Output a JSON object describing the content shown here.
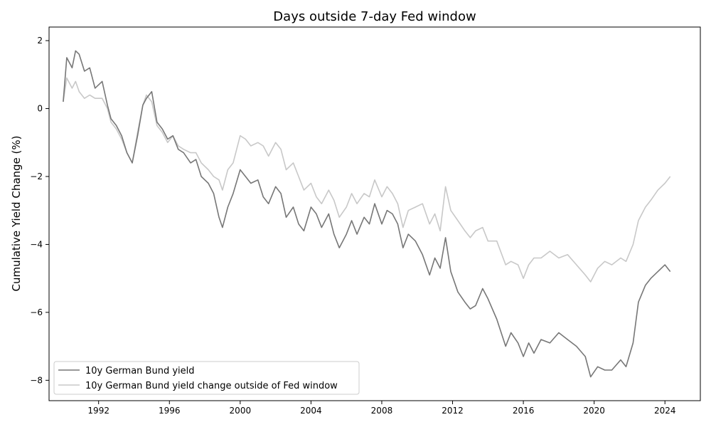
{
  "chart_data": {
    "type": "line",
    "title": "Days outside 7-day Fed window",
    "xlabel": "",
    "ylabel": "Cumulative Yield Change (%)",
    "xlim": [
      1989.2,
      2026.0
    ],
    "ylim": [
      -8.6,
      2.4
    ],
    "x_ticks": [
      1992,
      1996,
      2000,
      2004,
      2008,
      2012,
      2016,
      2020,
      2024
    ],
    "y_ticks": [
      2,
      0,
      -2,
      -4,
      -6,
      -8
    ],
    "y_tick_labels": [
      "2",
      "0",
      "−2",
      "−4",
      "−6",
      "−8"
    ],
    "grid": false,
    "legend_placement": "lower-left",
    "series": [
      {
        "name": "10y German Bund yield",
        "color": "#777777",
        "x": [
          1990.0,
          1990.2,
          1990.5,
          1990.7,
          1990.9,
          1991.2,
          1991.5,
          1991.8,
          1992.2,
          1992.5,
          1992.7,
          1993.0,
          1993.3,
          1993.6,
          1993.9,
          1994.2,
          1994.5,
          1994.7,
          1995.0,
          1995.3,
          1995.6,
          1995.9,
          1996.2,
          1996.5,
          1996.8,
          1997.2,
          1997.5,
          1997.8,
          1998.2,
          1998.5,
          1998.8,
          1999.0,
          1999.3,
          1999.6,
          2000.0,
          2000.3,
          2000.6,
          2001.0,
          2001.3,
          2001.6,
          2002.0,
          2002.3,
          2002.6,
          2003.0,
          2003.3,
          2003.6,
          2004.0,
          2004.3,
          2004.6,
          2005.0,
          2005.3,
          2005.6,
          2006.0,
          2006.3,
          2006.6,
          2007.0,
          2007.3,
          2007.6,
          2008.0,
          2008.3,
          2008.6,
          2008.9,
          2009.2,
          2009.5,
          2009.9,
          2010.3,
          2010.7,
          2011.0,
          2011.3,
          2011.6,
          2011.9,
          2012.3,
          2012.7,
          2013.0,
          2013.3,
          2013.7,
          2014.0,
          2014.5,
          2015.0,
          2015.3,
          2015.7,
          2016.0,
          2016.3,
          2016.6,
          2017.0,
          2017.5,
          2018.0,
          2018.5,
          2019.0,
          2019.5,
          2019.8,
          2020.2,
          2020.6,
          2021.0,
          2021.5,
          2021.8,
          2022.2,
          2022.5,
          2022.9,
          2023.2,
          2023.6,
          2024.0,
          2024.3
        ],
        "y": [
          0.2,
          1.5,
          1.2,
          1.7,
          1.6,
          1.1,
          1.2,
          0.6,
          0.8,
          0.1,
          -0.3,
          -0.5,
          -0.8,
          -1.3,
          -1.6,
          -0.8,
          0.1,
          0.3,
          0.5,
          -0.4,
          -0.6,
          -0.9,
          -0.8,
          -1.2,
          -1.3,
          -1.6,
          -1.5,
          -2.0,
          -2.2,
          -2.5,
          -3.2,
          -3.5,
          -2.9,
          -2.5,
          -1.8,
          -2.0,
          -2.2,
          -2.1,
          -2.6,
          -2.8,
          -2.3,
          -2.5,
          -3.2,
          -2.9,
          -3.4,
          -3.6,
          -2.9,
          -3.1,
          -3.5,
          -3.1,
          -3.7,
          -4.1,
          -3.7,
          -3.3,
          -3.7,
          -3.2,
          -3.4,
          -2.8,
          -3.4,
          -3.0,
          -3.1,
          -3.4,
          -4.1,
          -3.7,
          -3.9,
          -4.3,
          -4.9,
          -4.4,
          -4.7,
          -3.8,
          -4.8,
          -5.4,
          -5.7,
          -5.9,
          -5.8,
          -5.3,
          -5.6,
          -6.2,
          -7.0,
          -6.6,
          -6.9,
          -7.3,
          -6.9,
          -7.2,
          -6.8,
          -6.9,
          -6.6,
          -6.8,
          -7.0,
          -7.3,
          -7.9,
          -7.6,
          -7.7,
          -7.7,
          -7.4,
          -7.6,
          -6.9,
          -5.7,
          -5.2,
          -5.0,
          -4.8,
          -4.6,
          -4.8
        ]
      },
      {
        "name": "10y German Bund yield change outside of Fed window",
        "color": "#c8c8c8",
        "x": [
          1990.0,
          1990.2,
          1990.5,
          1990.7,
          1990.9,
          1991.2,
          1991.5,
          1991.8,
          1992.2,
          1992.5,
          1992.7,
          1993.0,
          1993.3,
          1993.6,
          1993.9,
          1994.2,
          1994.5,
          1994.7,
          1995.0,
          1995.3,
          1995.6,
          1995.9,
          1996.2,
          1996.5,
          1996.8,
          1997.2,
          1997.5,
          1997.8,
          1998.2,
          1998.5,
          1998.8,
          1999.0,
          1999.3,
          1999.6,
          2000.0,
          2000.3,
          2000.6,
          2001.0,
          2001.3,
          2001.6,
          2002.0,
          2002.3,
          2002.6,
          2003.0,
          2003.3,
          2003.6,
          2004.0,
          2004.3,
          2004.6,
          2005.0,
          2005.3,
          2005.6,
          2006.0,
          2006.3,
          2006.6,
          2007.0,
          2007.3,
          2007.6,
          2008.0,
          2008.3,
          2008.6,
          2008.9,
          2009.2,
          2009.5,
          2009.9,
          2010.3,
          2010.7,
          2011.0,
          2011.3,
          2011.6,
          2011.9,
          2012.3,
          2012.7,
          2013.0,
          2013.3,
          2013.7,
          2014.0,
          2014.5,
          2015.0,
          2015.3,
          2015.7,
          2016.0,
          2016.3,
          2016.6,
          2017.0,
          2017.5,
          2018.0,
          2018.5,
          2019.0,
          2019.5,
          2019.8,
          2020.2,
          2020.6,
          2021.0,
          2021.5,
          2021.8,
          2022.2,
          2022.5,
          2022.9,
          2023.2,
          2023.6,
          2024.0,
          2024.3
        ],
        "y": [
          0.2,
          0.9,
          0.6,
          0.8,
          0.5,
          0.3,
          0.4,
          0.3,
          0.3,
          0.0,
          -0.4,
          -0.6,
          -0.9,
          -1.3,
          -1.6,
          -0.7,
          0.1,
          0.4,
          0.2,
          -0.5,
          -0.7,
          -1.0,
          -0.8,
          -1.1,
          -1.2,
          -1.3,
          -1.3,
          -1.6,
          -1.8,
          -2.0,
          -2.1,
          -2.4,
          -1.8,
          -1.6,
          -0.8,
          -0.9,
          -1.1,
          -1.0,
          -1.1,
          -1.4,
          -1.0,
          -1.2,
          -1.8,
          -1.6,
          -2.0,
          -2.4,
          -2.2,
          -2.6,
          -2.8,
          -2.4,
          -2.7,
          -3.2,
          -2.9,
          -2.5,
          -2.8,
          -2.5,
          -2.6,
          -2.1,
          -2.6,
          -2.3,
          -2.5,
          -2.8,
          -3.5,
          -3.0,
          -2.9,
          -2.8,
          -3.4,
          -3.1,
          -3.6,
          -2.3,
          -3.0,
          -3.3,
          -3.6,
          -3.8,
          -3.6,
          -3.5,
          -3.9,
          -3.9,
          -4.6,
          -4.5,
          -4.6,
          -5.0,
          -4.6,
          -4.4,
          -4.4,
          -4.2,
          -4.4,
          -4.3,
          -4.6,
          -4.9,
          -5.1,
          -4.7,
          -4.5,
          -4.6,
          -4.4,
          -4.5,
          -4.0,
          -3.3,
          -2.9,
          -2.7,
          -2.4,
          -2.2,
          -2.0
        ]
      }
    ]
  }
}
